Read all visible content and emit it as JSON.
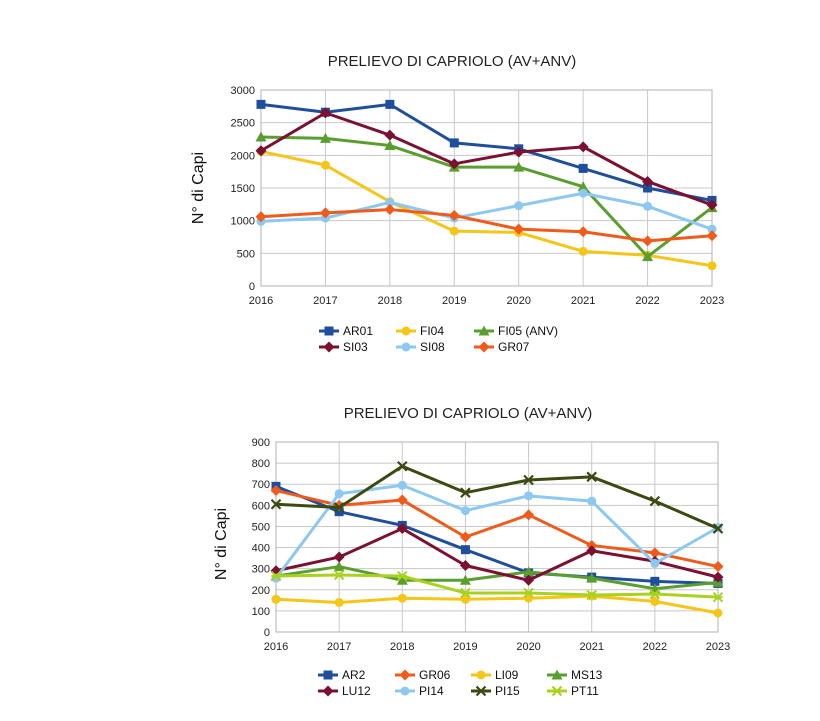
{
  "chart_data": [
    {
      "type": "line",
      "title": "PRELIEVO DI CAPRIOLO (AV+ANV)",
      "xlabel": "",
      "ylabel": "N° di Capi",
      "x": [
        "2016",
        "2017",
        "2018",
        "2019",
        "2020",
        "2021",
        "2022",
        "2023"
      ],
      "ylim": [
        0,
        3000
      ],
      "yticks": [
        0,
        500,
        1000,
        1500,
        2000,
        2500,
        3000
      ],
      "grid": true,
      "legend": "bottom",
      "series": [
        {
          "name": "AR01",
          "color": "#1f4e9c",
          "marker": "square",
          "values": [
            2780,
            2660,
            2780,
            2190,
            2100,
            1800,
            1500,
            1310
          ]
        },
        {
          "name": "FI04",
          "color": "#f5c518",
          "marker": "circle",
          "values": [
            2060,
            1850,
            1290,
            840,
            820,
            530,
            470,
            310
          ]
        },
        {
          "name": "FI05 (ANV)",
          "color": "#5a9e2f",
          "marker": "triangle",
          "values": [
            2280,
            2260,
            2150,
            1820,
            1820,
            1520,
            450,
            1200
          ]
        },
        {
          "name": "SI03",
          "color": "#7b1030",
          "marker": "diamond",
          "values": [
            2070,
            2650,
            2310,
            1870,
            2050,
            2130,
            1600,
            1240
          ]
        },
        {
          "name": "SI08",
          "color": "#8cc8f0",
          "marker": "circle",
          "values": [
            990,
            1040,
            1280,
            1040,
            1230,
            1420,
            1220,
            870
          ]
        },
        {
          "name": "GR07",
          "color": "#f05a1a",
          "marker": "diamond",
          "values": [
            1060,
            1120,
            1170,
            1080,
            870,
            830,
            690,
            770
          ]
        }
      ]
    },
    {
      "type": "line",
      "title": "PRELIEVO DI CAPRIOLO (AV+ANV)",
      "xlabel": "",
      "ylabel": "N° di Capi",
      "x": [
        "2016",
        "2017",
        "2018",
        "2019",
        "2020",
        "2021",
        "2022",
        "2023"
      ],
      "ylim": [
        0,
        900
      ],
      "yticks": [
        0,
        100,
        200,
        300,
        400,
        500,
        600,
        700,
        800,
        900
      ],
      "grid": true,
      "legend": "bottom",
      "series": [
        {
          "name": "AR2",
          "color": "#1f4e9c",
          "marker": "square",
          "values": [
            690,
            570,
            505,
            390,
            280,
            260,
            240,
            230
          ]
        },
        {
          "name": "GR06",
          "color": "#f05a1a",
          "marker": "diamond",
          "values": [
            670,
            600,
            625,
            450,
            555,
            410,
            375,
            310
          ]
        },
        {
          "name": "LI09",
          "color": "#f5c518",
          "marker": "circle",
          "values": [
            155,
            140,
            160,
            155,
            160,
            170,
            145,
            90
          ]
        },
        {
          "name": "MS13",
          "color": "#5a9e2f",
          "marker": "triangle",
          "values": [
            265,
            310,
            245,
            245,
            285,
            255,
            205,
            235
          ]
        },
        {
          "name": "LU12",
          "color": "#7b1030",
          "marker": "diamond",
          "values": [
            290,
            355,
            490,
            315,
            245,
            385,
            335,
            260
          ]
        },
        {
          "name": "PI14",
          "color": "#8cc8f0",
          "marker": "circle",
          "values": [
            255,
            655,
            695,
            575,
            645,
            620,
            325,
            495
          ]
        },
        {
          "name": "PI15",
          "color": "#3b4a10",
          "marker": "x",
          "values": [
            605,
            590,
            785,
            660,
            720,
            735,
            620,
            490
          ]
        },
        {
          "name": "PT11",
          "color": "#a8d21e",
          "marker": "asterisk",
          "values": [
            265,
            270,
            265,
            185,
            185,
            175,
            180,
            165
          ]
        }
      ]
    }
  ]
}
